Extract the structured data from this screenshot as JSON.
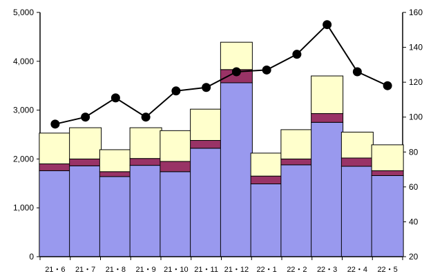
{
  "chart_data": {
    "type": "bar",
    "categories": [
      "21・6",
      "21・7",
      "21・8",
      "21・9",
      "21・10",
      "21・11",
      "21・12",
      "22・1",
      "22・2",
      "22・3",
      "22・4",
      "22・5"
    ],
    "series": [
      {
        "kind": "bar",
        "stack": "left",
        "color": "#9999ee",
        "values": [
          1760,
          1860,
          1640,
          1870,
          1740,
          2220,
          3560,
          1490,
          1880,
          2750,
          1850,
          1660
        ]
      },
      {
        "kind": "bar",
        "stack": "left",
        "color": "#993366",
        "values": [
          140,
          140,
          100,
          140,
          210,
          160,
          270,
          160,
          120,
          180,
          170,
          100
        ]
      },
      {
        "kind": "bar",
        "stack": "left",
        "color": "#ffffcc",
        "values": [
          630,
          640,
          450,
          630,
          630,
          640,
          560,
          470,
          600,
          770,
          530,
          530
        ]
      },
      {
        "kind": "line",
        "axis": "right",
        "color": "#000000",
        "values": [
          96,
          100,
          111,
          100,
          115,
          117,
          126,
          127,
          136,
          153,
          126,
          118
        ]
      }
    ],
    "y_left": {
      "min": 0,
      "max": 5000,
      "ticks": [
        0,
        1000,
        2000,
        3000,
        4000,
        5000
      ],
      "tick_labels": [
        "0",
        "1,000",
        "2,000",
        "3,000",
        "4,000",
        "5,000"
      ]
    },
    "y_right": {
      "min": 20,
      "max": 160,
      "ticks": [
        20,
        40,
        60,
        80,
        100,
        120,
        140,
        160
      ],
      "tick_labels": [
        "20",
        "40",
        "60",
        "80",
        "100",
        "120",
        "140",
        "160"
      ]
    },
    "grid": false,
    "legend": "none"
  }
}
